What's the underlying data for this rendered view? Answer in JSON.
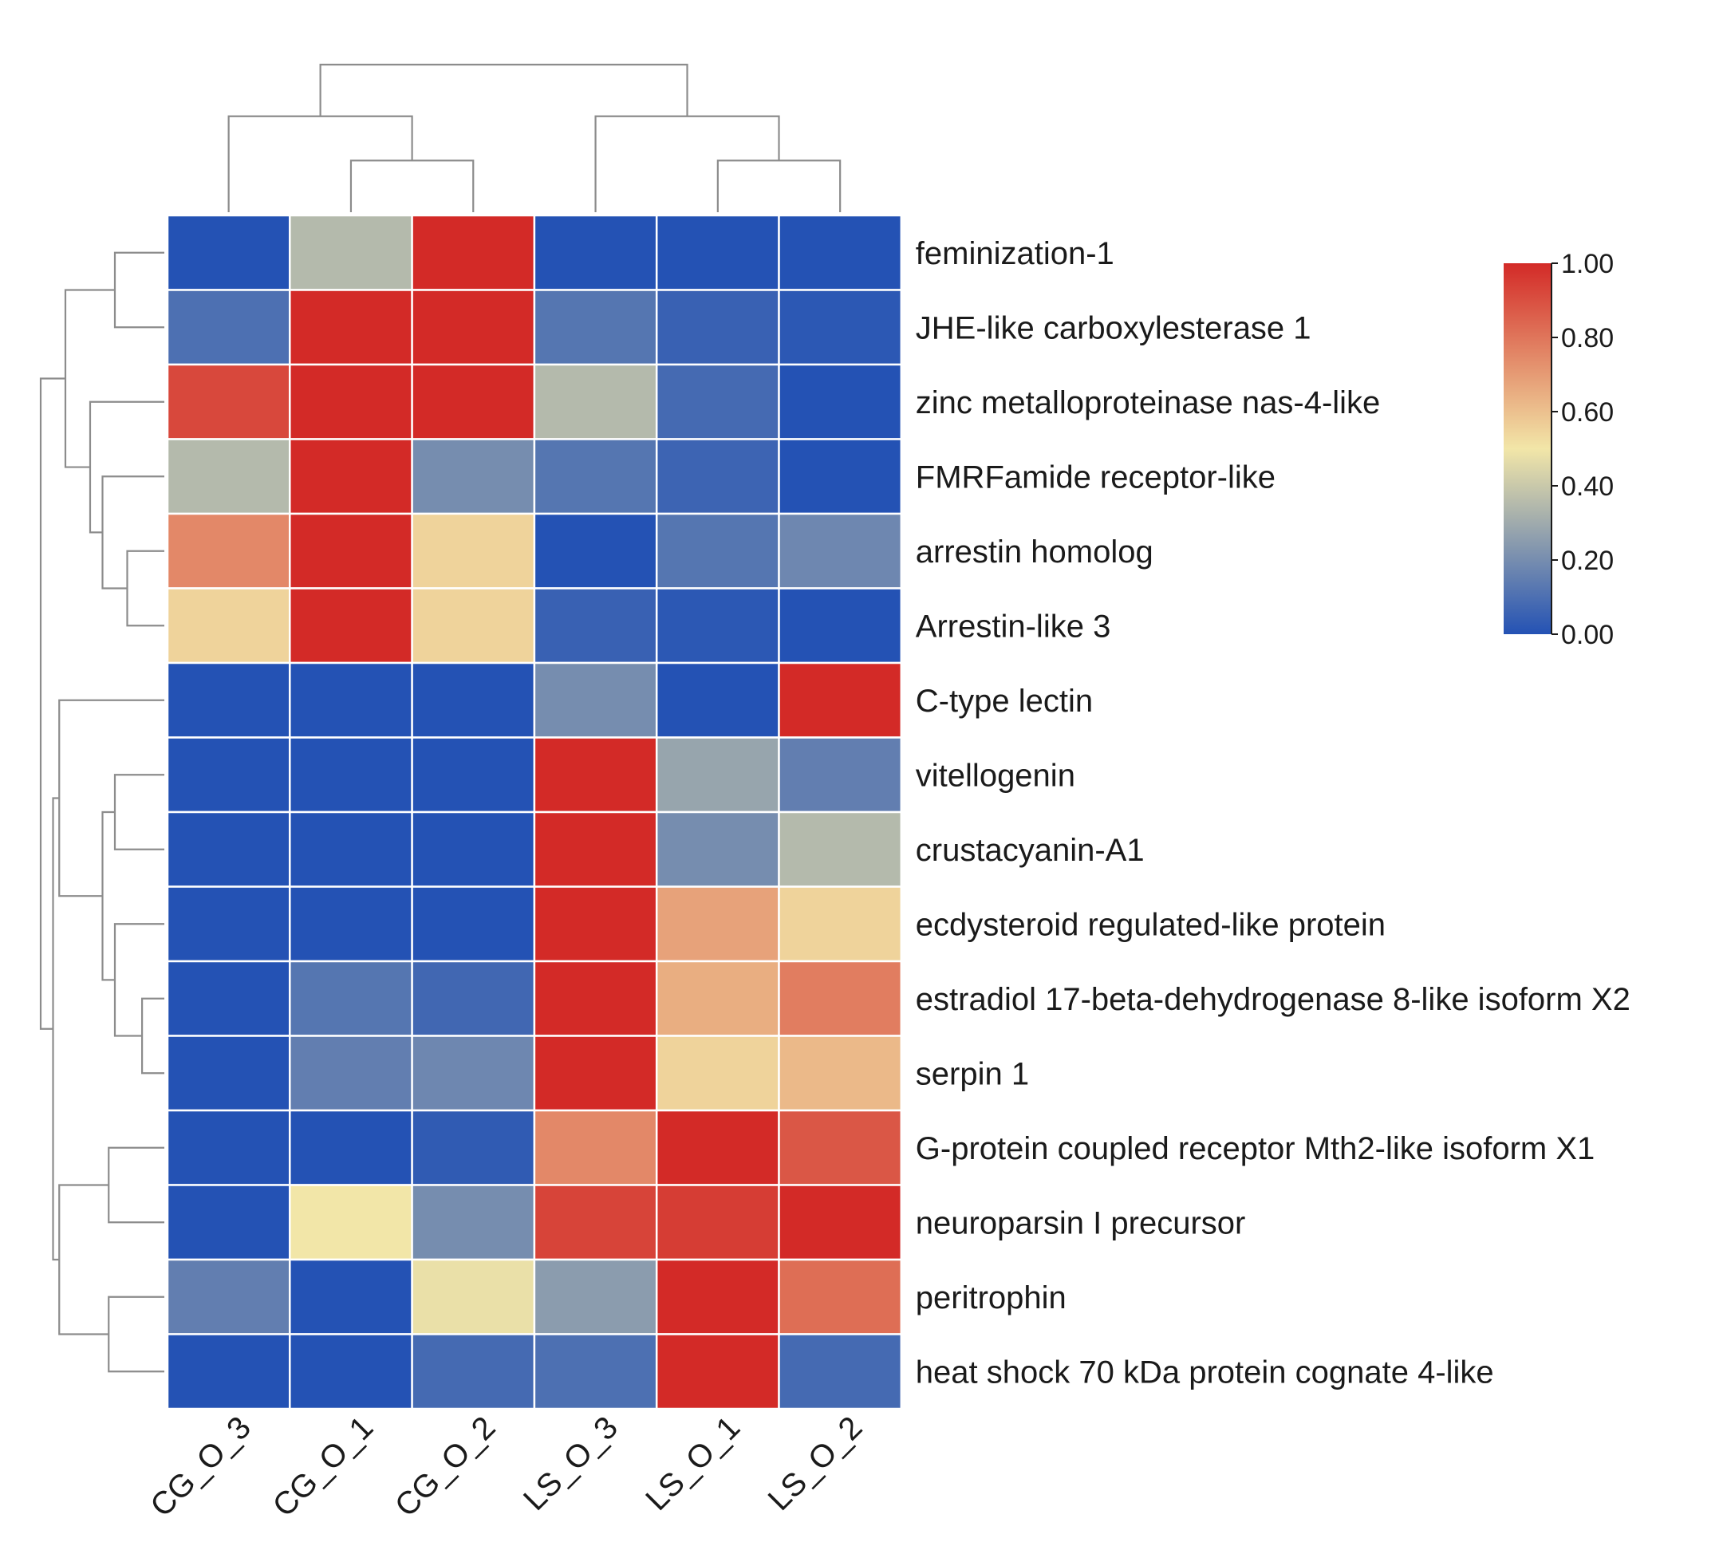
{
  "chart_data": {
    "type": "heatmap",
    "title": "",
    "columns": [
      "CG_O_3",
      "CG_O_1",
      "CG_O_2",
      "LS_O_3",
      "LS_O_1",
      "LS_O_2"
    ],
    "rows": [
      "feminization-1",
      "JHE-like carboxylesterase 1",
      "zinc metalloproteinase nas-4-like",
      "FMRFamide receptor-like",
      "arrestin homolog",
      "Arrestin-like 3",
      "C-type lectin",
      "vitellogenin",
      "crustacyanin-A1",
      "ecdysteroid regulated-like protein",
      "estradiol 17-beta-dehydrogenase 8-like isoform X2",
      "serpin 1",
      "G-protein coupled receptor Mth2-like isoform X1",
      "neuroparsin I precursor",
      "peritrophin",
      "heat shock 70 kDa protein cognate 4-like"
    ],
    "values": [
      [
        0.0,
        0.35,
        1.0,
        0.0,
        0.0,
        0.0
      ],
      [
        0.1,
        1.0,
        1.0,
        0.12,
        0.05,
        0.02
      ],
      [
        0.92,
        1.0,
        1.0,
        0.35,
        0.08,
        0.0
      ],
      [
        0.35,
        1.0,
        0.2,
        0.12,
        0.06,
        0.0
      ],
      [
        0.75,
        1.0,
        0.55,
        0.0,
        0.12,
        0.18
      ],
      [
        0.55,
        1.0,
        0.55,
        0.05,
        0.02,
        0.0
      ],
      [
        0.0,
        0.0,
        0.0,
        0.2,
        0.0,
        1.0
      ],
      [
        0.0,
        0.0,
        0.0,
        1.0,
        0.28,
        0.15
      ],
      [
        0.0,
        0.0,
        0.0,
        1.0,
        0.2,
        0.35
      ],
      [
        0.0,
        0.0,
        0.0,
        1.0,
        0.68,
        0.55
      ],
      [
        0.0,
        0.12,
        0.07,
        1.0,
        0.65,
        0.78
      ],
      [
        0.0,
        0.15,
        0.18,
        1.0,
        0.55,
        0.62
      ],
      [
        0.0,
        0.0,
        0.03,
        0.75,
        1.0,
        0.88
      ],
      [
        0.0,
        0.5,
        0.2,
        0.93,
        0.95,
        1.0
      ],
      [
        0.15,
        0.0,
        0.48,
        0.25,
        1.0,
        0.82
      ],
      [
        0.0,
        0.0,
        0.08,
        0.1,
        1.0,
        0.08
      ]
    ],
    "colorbar": {
      "range": [
        0.0,
        1.0
      ],
      "ticks": [
        "0.00",
        "0.20",
        "0.40",
        "0.60",
        "0.80",
        "1.00"
      ],
      "tick_values": [
        0.0,
        0.2,
        0.4,
        0.6,
        0.8,
        1.0
      ],
      "colormap": "blue-yellow-red",
      "colors": [
        "#2452b4",
        "#f2e6a8",
        "#d32a27"
      ],
      "position": "top-right"
    },
    "col_dendrogram": {
      "leaves": [
        "CG_O_3",
        "CG_O_1",
        "CG_O_2",
        "LS_O_3",
        "LS_O_1",
        "LS_O_2"
      ],
      "merges": [
        [
          1,
          2,
          0.35
        ],
        [
          4,
          5,
          0.35
        ],
        [
          0,
          6,
          0.65
        ],
        [
          3,
          7,
          0.65
        ],
        [
          8,
          9,
          1.0
        ]
      ]
    },
    "row_dendrogram": {
      "merges": [
        [
          0,
          1,
          0.4
        ],
        [
          4,
          5,
          0.3
        ],
        [
          3,
          17,
          0.5
        ],
        [
          2,
          18,
          0.6
        ],
        [
          16,
          19,
          0.8
        ],
        [
          7,
          8,
          0.4
        ],
        [
          10,
          11,
          0.18
        ],
        [
          9,
          22,
          0.4
        ],
        [
          21,
          23,
          0.5
        ],
        [
          6,
          24,
          0.85
        ],
        [
          12,
          13,
          0.45
        ],
        [
          14,
          15,
          0.45
        ],
        [
          26,
          27,
          0.85
        ],
        [
          25,
          28,
          0.9
        ],
        [
          20,
          29,
          1.0
        ]
      ]
    }
  }
}
